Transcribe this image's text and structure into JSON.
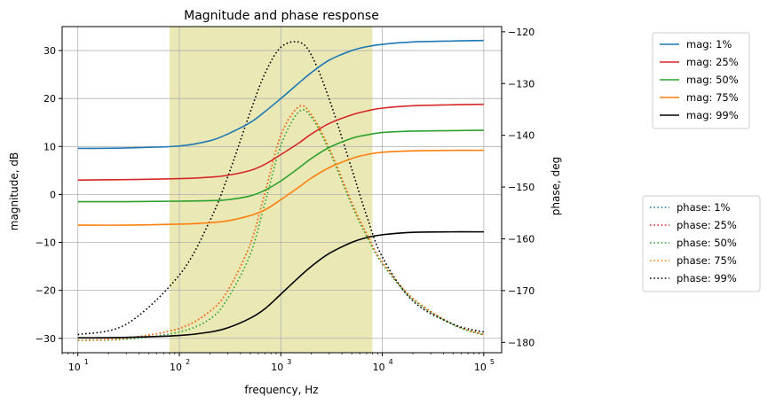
{
  "chart_data": {
    "type": "line",
    "title": "Magnitude and phase response",
    "xlabel": "frequency, Hz",
    "ylabel": "magnitude, dB",
    "y2label": "phase, deg",
    "x_scale": "log",
    "xlim": [
      7,
      150000
    ],
    "ylim": [
      -33,
      35
    ],
    "y2lim": [
      -182,
      -119
    ],
    "x_ticks": [
      10,
      100,
      1000,
      10000,
      100000
    ],
    "x_tick_labels": [
      [
        "10",
        "1"
      ],
      [
        "10",
        "2"
      ],
      [
        "10",
        "3"
      ],
      [
        "10",
        "4"
      ],
      [
        "10",
        "5"
      ]
    ],
    "y_ticks": [
      -30,
      -20,
      -10,
      0,
      10,
      20,
      30
    ],
    "y2_ticks": [
      -180,
      -170,
      -160,
      -150,
      -140,
      -130,
      -120
    ],
    "grid": true,
    "shaded_band": {
      "x": [
        80,
        8000
      ],
      "color": "#d9d77a"
    },
    "legend_magnitude_position": "top-right",
    "legend_phase_position": "center-right",
    "frequency_points": [
      10,
      30,
      100,
      200,
      300,
      500,
      700,
      1000,
      1500,
      2000,
      3000,
      5000,
      7000,
      10000,
      20000,
      50000,
      100000
    ],
    "magnitude_series": [
      {
        "name": "mag: 1%",
        "color": "#1f77b4",
        "values": [
          9.6,
          9.7,
          10.1,
          11.2,
          12.6,
          15.0,
          17.3,
          20.0,
          23.2,
          25.4,
          28.0,
          30.0,
          30.8,
          31.3,
          31.8,
          32.0,
          32.1
        ]
      },
      {
        "name": "mag: 25%",
        "color": "#d62728",
        "values": [
          3.0,
          3.1,
          3.3,
          3.6,
          4.0,
          5.0,
          6.3,
          8.3,
          10.7,
          12.6,
          14.8,
          16.6,
          17.4,
          18.0,
          18.5,
          18.7,
          18.8
        ]
      },
      {
        "name": "mag: 50%",
        "color": "#2ca02c",
        "values": [
          -1.5,
          -1.5,
          -1.4,
          -1.3,
          -1.1,
          -0.3,
          0.9,
          2.8,
          5.5,
          7.5,
          9.8,
          11.7,
          12.4,
          12.9,
          13.2,
          13.3,
          13.4
        ]
      },
      {
        "name": "mag: 75%",
        "color": "#ff7f0e",
        "values": [
          -6.4,
          -6.4,
          -6.2,
          -5.9,
          -5.5,
          -4.4,
          -3.2,
          -1.1,
          1.5,
          3.4,
          5.6,
          7.5,
          8.3,
          8.8,
          9.1,
          9.2,
          9.2
        ]
      },
      {
        "name": "mag: 99%",
        "color": "#000000",
        "values": [
          -29.9,
          -29.8,
          -29.4,
          -28.7,
          -27.8,
          -25.8,
          -23.8,
          -20.8,
          -17.3,
          -15.0,
          -12.3,
          -10.0,
          -9.0,
          -8.4,
          -7.9,
          -7.8,
          -7.8
        ]
      }
    ],
    "phase_series": [
      {
        "name": "phase: 1%",
        "color": "#1f77b4",
        "values": [
          -179.6,
          -179.2,
          -177.3,
          -174.0,
          -170.0,
          -161.0,
          -151.0,
          -140.0,
          -134.5,
          -136.0,
          -142.5,
          -153.0,
          -159.0,
          -164.5,
          -171.5,
          -176.5,
          -178.5
        ]
      },
      {
        "name": "phase: 25%",
        "color": "#d62728",
        "values": [
          -179.6,
          -179.2,
          -177.3,
          -174.0,
          -170.0,
          -161.0,
          -151.0,
          -140.0,
          -134.5,
          -136.0,
          -142.5,
          -153.0,
          -159.0,
          -164.5,
          -171.5,
          -176.5,
          -178.5
        ]
      },
      {
        "name": "phase: 50%",
        "color": "#2ca02c",
        "values": [
          -179.6,
          -179.4,
          -178.0,
          -175.5,
          -171.5,
          -163.0,
          -153.0,
          -142.0,
          -135.5,
          -136.5,
          -143.0,
          -153.5,
          -159.5,
          -164.8,
          -171.7,
          -176.6,
          -178.6
        ]
      },
      {
        "name": "phase: 75%",
        "color": "#ff7f0e",
        "values": [
          -179.6,
          -179.2,
          -177.3,
          -174.0,
          -170.0,
          -161.0,
          -151.0,
          -140.0,
          -134.5,
          -136.0,
          -142.5,
          -153.0,
          -159.0,
          -164.5,
          -171.5,
          -176.5,
          -178.5
        ]
      },
      {
        "name": "phase: 99%",
        "color": "#000000",
        "values": [
          -178.5,
          -176.5,
          -167.0,
          -156.5,
          -148.0,
          -135.5,
          -128.0,
          -123.0,
          -122.0,
          -124.5,
          -133.0,
          -146.5,
          -155.5,
          -163.5,
          -172.0,
          -176.5,
          -178.0
        ]
      }
    ]
  }
}
